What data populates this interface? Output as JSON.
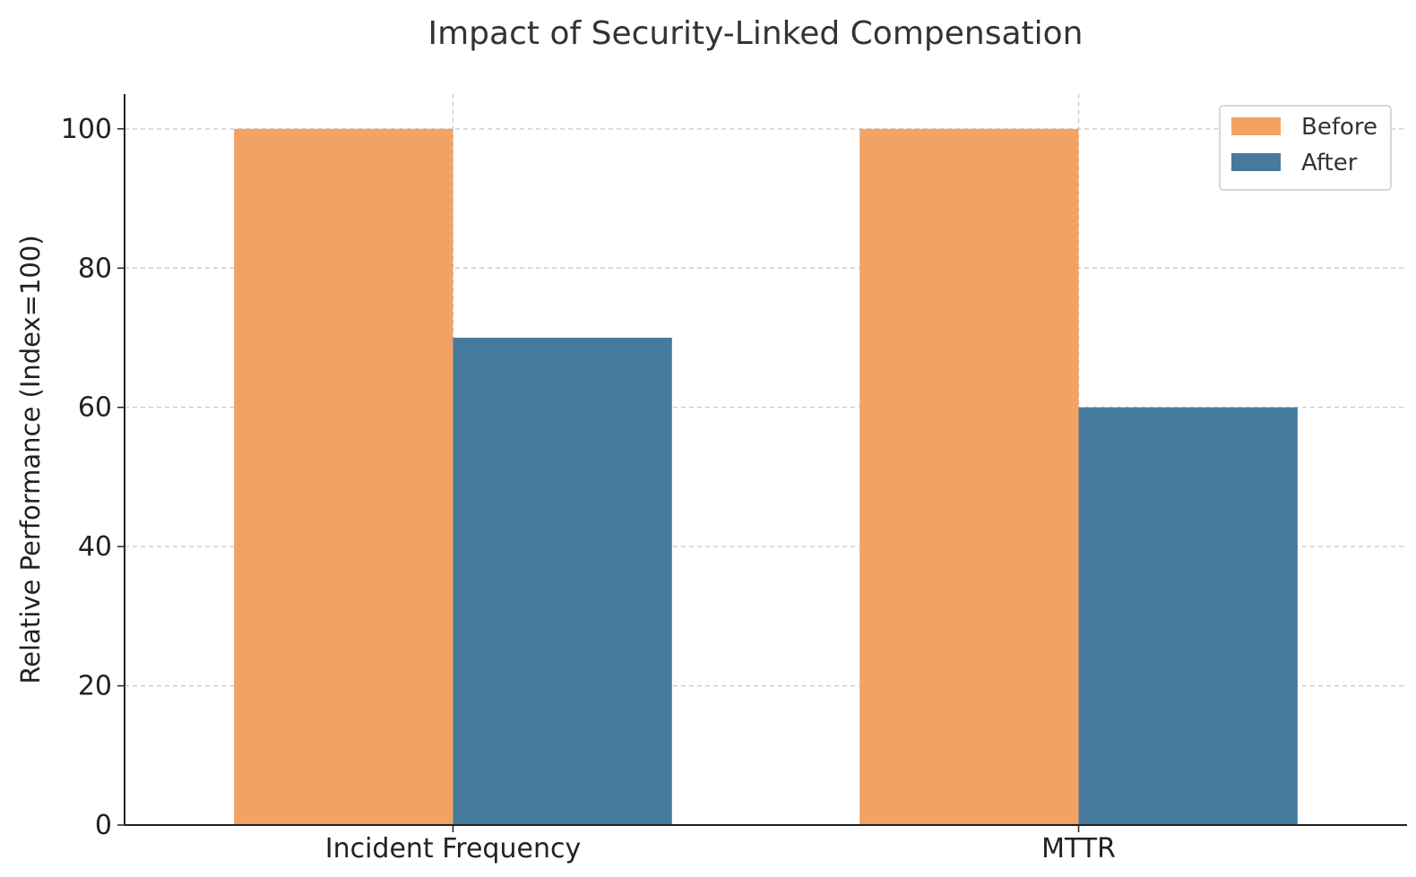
{
  "chart_data": {
    "type": "bar",
    "title": "Impact of Security-Linked Compensation",
    "xlabel": "",
    "ylabel": "Relative Performance (Index=100)",
    "categories": [
      "Incident Frequency",
      "MTTR"
    ],
    "series": [
      {
        "name": "Before",
        "values": [
          100,
          100
        ],
        "color": "#F2A263"
      },
      {
        "name": "After",
        "values": [
          70,
          60
        ],
        "color": "#467A9C"
      }
    ],
    "ylim": [
      0,
      105
    ],
    "yticks": [
      0,
      20,
      40,
      60,
      80,
      100
    ],
    "grid": true,
    "legend": "top-right"
  }
}
